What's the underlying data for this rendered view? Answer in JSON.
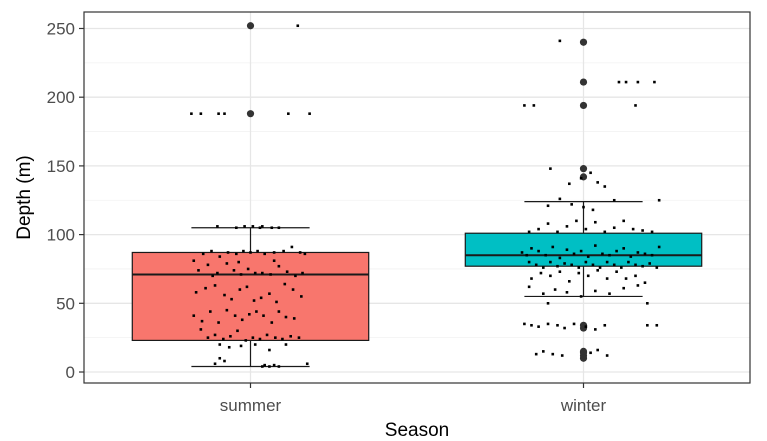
{
  "chart_data": {
    "type": "boxplot",
    "xlabel": "Season",
    "ylabel": "Depth (m)",
    "categories": [
      "summer",
      "winter"
    ],
    "ylim": [
      -8,
      262
    ],
    "yticks": [
      0,
      50,
      100,
      150,
      200,
      250
    ],
    "grid": true,
    "colors": {
      "summer": "#F8766D",
      "winter": "#00BFC4"
    },
    "boxes": [
      {
        "category": "summer",
        "whisker_low": 4,
        "q1": 23,
        "median": 71,
        "q3": 87,
        "whisker_high": 105,
        "outliers": [
          188,
          252
        ]
      },
      {
        "category": "winter",
        "whisker_low": 55,
        "q1": 77,
        "median": 85,
        "q3": 101,
        "whisker_high": 124,
        "outliers": [
          10,
          12,
          14,
          15,
          32,
          34,
          142,
          148,
          194,
          211,
          240
        ]
      }
    ],
    "jitter_points": {
      "summer": [
        [
          -0.5,
          188
        ],
        [
          -0.42,
          188
        ],
        [
          -0.27,
          188
        ],
        [
          -0.22,
          188
        ],
        [
          0.4,
          252
        ],
        [
          0.32,
          188
        ],
        [
          0.5,
          188
        ],
        [
          -0.28,
          106
        ],
        [
          -0.12,
          105
        ],
        [
          -0.05,
          106
        ],
        [
          0.02,
          106
        ],
        [
          0.08,
          105
        ],
        [
          0.18,
          105
        ],
        [
          0.24,
          105
        ],
        [
          0.1,
          106
        ],
        [
          -0.48,
          81
        ],
        [
          -0.4,
          86
        ],
        [
          -0.33,
          88
        ],
        [
          -0.26,
          84
        ],
        [
          -0.19,
          87
        ],
        [
          -0.12,
          86
        ],
        [
          -0.06,
          88
        ],
        [
          0.0,
          87
        ],
        [
          0.06,
          88
        ],
        [
          0.12,
          86
        ],
        [
          0.2,
          87
        ],
        [
          0.28,
          88
        ],
        [
          0.35,
          91
        ],
        [
          0.42,
          87
        ],
        [
          0.46,
          86
        ],
        [
          -0.44,
          74
        ],
        [
          -0.36,
          78
        ],
        [
          -0.28,
          72
        ],
        [
          -0.2,
          79
        ],
        [
          -0.14,
          74
        ],
        [
          -0.08,
          71
        ],
        [
          -0.02,
          75
        ],
        [
          0.04,
          72
        ],
        [
          0.1,
          72
        ],
        [
          0.17,
          71
        ],
        [
          0.24,
          77
        ],
        [
          0.31,
          73
        ],
        [
          0.38,
          70
        ],
        [
          0.44,
          72
        ],
        [
          -0.32,
          70
        ],
        [
          -0.1,
          80
        ],
        [
          0.2,
          81
        ],
        [
          -0.46,
          58
        ],
        [
          -0.38,
          61
        ],
        [
          -0.3,
          63
        ],
        [
          -0.22,
          56
        ],
        [
          -0.16,
          53
        ],
        [
          -0.09,
          60
        ],
        [
          -0.03,
          62
        ],
        [
          0.03,
          52
        ],
        [
          0.09,
          54
        ],
        [
          0.16,
          57
        ],
        [
          0.22,
          51
        ],
        [
          0.29,
          64
        ],
        [
          0.36,
          60
        ],
        [
          0.43,
          55
        ],
        [
          -0.48,
          41
        ],
        [
          -0.41,
          37
        ],
        [
          -0.34,
          44
        ],
        [
          -0.27,
          36
        ],
        [
          -0.2,
          45
        ],
        [
          -0.13,
          41
        ],
        [
          -0.07,
          38
        ],
        [
          -0.01,
          42
        ],
        [
          0.05,
          44
        ],
        [
          0.11,
          41
        ],
        [
          0.18,
          36
        ],
        [
          0.24,
          44
        ],
        [
          0.3,
          40
        ],
        [
          0.37,
          39
        ],
        [
          -0.42,
          31
        ],
        [
          -0.36,
          25
        ],
        [
          -0.3,
          27
        ],
        [
          -0.23,
          24
        ],
        [
          -0.17,
          26
        ],
        [
          -0.11,
          30
        ],
        [
          -0.04,
          23
        ],
        [
          0.02,
          25
        ],
        [
          0.08,
          24
        ],
        [
          0.14,
          27
        ],
        [
          0.21,
          25
        ],
        [
          0.27,
          24
        ],
        [
          0.34,
          26
        ],
        [
          0.41,
          25
        ],
        [
          -0.26,
          20
        ],
        [
          -0.18,
          18
        ],
        [
          -0.08,
          19
        ],
        [
          0.04,
          20
        ],
        [
          0.16,
          16
        ],
        [
          0.3,
          20
        ],
        [
          -0.3,
          6
        ],
        [
          -0.26,
          10
        ],
        [
          -0.22,
          8
        ],
        [
          0.1,
          4
        ],
        [
          0.12,
          5
        ],
        [
          0.16,
          4
        ],
        [
          0.2,
          5
        ],
        [
          0.24,
          4
        ],
        [
          0.48,
          6
        ]
      ],
      "winter": [
        [
          -0.2,
          241
        ],
        [
          0.3,
          211
        ],
        [
          0.36,
          211
        ],
        [
          0.46,
          211
        ],
        [
          0.6,
          211
        ],
        [
          0.44,
          194
        ],
        [
          -0.5,
          194
        ],
        [
          -0.42,
          194
        ],
        [
          -0.28,
          148
        ],
        [
          -0.12,
          137
        ],
        [
          -0.02,
          141
        ],
        [
          0.06,
          145
        ],
        [
          0.12,
          138
        ],
        [
          0.18,
          135
        ],
        [
          -0.2,
          126
        ],
        [
          -0.1,
          122
        ],
        [
          0.0,
          120
        ],
        [
          0.08,
          118
        ],
        [
          0.26,
          125
        ],
        [
          -0.3,
          121
        ],
        [
          0.64,
          125
        ],
        [
          -0.46,
          102
        ],
        [
          -0.38,
          104
        ],
        [
          -0.3,
          108
        ],
        [
          -0.22,
          102
        ],
        [
          -0.14,
          106
        ],
        [
          -0.06,
          110
        ],
        [
          0.02,
          104
        ],
        [
          0.1,
          109
        ],
        [
          0.18,
          102
        ],
        [
          0.26,
          105
        ],
        [
          0.34,
          110
        ],
        [
          0.42,
          104
        ],
        [
          0.5,
          103
        ],
        [
          0.58,
          102
        ],
        [
          -0.52,
          87
        ],
        [
          -0.48,
          85
        ],
        [
          -0.44,
          90
        ],
        [
          -0.38,
          88
        ],
        [
          -0.32,
          85
        ],
        [
          -0.26,
          91
        ],
        [
          -0.2,
          83
        ],
        [
          -0.14,
          89
        ],
        [
          -0.08,
          86
        ],
        [
          -0.02,
          88
        ],
        [
          0.04,
          84
        ],
        [
          0.1,
          92
        ],
        [
          0.16,
          86
        ],
        [
          0.22,
          85
        ],
        [
          0.28,
          88
        ],
        [
          0.34,
          90
        ],
        [
          0.4,
          84
        ],
        [
          0.46,
          87
        ],
        [
          0.52,
          86
        ],
        [
          0.58,
          85
        ],
        [
          0.64,
          91
        ],
        [
          -0.46,
          80
        ],
        [
          -0.4,
          78
        ],
        [
          -0.34,
          76
        ],
        [
          -0.28,
          80
        ],
        [
          -0.22,
          77
        ],
        [
          -0.16,
          79
        ],
        [
          -0.1,
          78
        ],
        [
          -0.04,
          76
        ],
        [
          0.02,
          80
        ],
        [
          0.08,
          78
        ],
        [
          0.14,
          76
        ],
        [
          0.2,
          80
        ],
        [
          0.26,
          78
        ],
        [
          0.32,
          76
        ],
        [
          0.38,
          80
        ],
        [
          0.44,
          78
        ],
        [
          0.5,
          77
        ],
        [
          0.56,
          79
        ],
        [
          0.62,
          76
        ],
        [
          -0.44,
          68
        ],
        [
          -0.36,
          72
        ],
        [
          -0.28,
          70
        ],
        [
          -0.2,
          73
        ],
        [
          -0.12,
          66
        ],
        [
          -0.04,
          72
        ],
        [
          0.04,
          70
        ],
        [
          0.12,
          74
        ],
        [
          0.2,
          68
        ],
        [
          0.28,
          73
        ],
        [
          0.36,
          68
        ],
        [
          0.44,
          70
        ],
        [
          0.52,
          65
        ],
        [
          -0.46,
          62
        ],
        [
          -0.34,
          57
        ],
        [
          -0.24,
          60
        ],
        [
          -0.14,
          58
        ],
        [
          -0.02,
          55
        ],
        [
          0.1,
          59
        ],
        [
          0.22,
          57
        ],
        [
          0.34,
          61
        ],
        [
          0.46,
          63
        ],
        [
          0.54,
          50
        ],
        [
          -0.3,
          50
        ],
        [
          -0.5,
          35
        ],
        [
          -0.44,
          34
        ],
        [
          -0.38,
          33
        ],
        [
          -0.3,
          35
        ],
        [
          -0.22,
          34
        ],
        [
          -0.16,
          32
        ],
        [
          -0.08,
          35
        ],
        [
          0.02,
          33
        ],
        [
          0.1,
          31
        ],
        [
          0.18,
          34
        ],
        [
          0.54,
          34
        ],
        [
          0.62,
          34
        ],
        [
          -0.4,
          13
        ],
        [
          -0.34,
          15
        ],
        [
          -0.26,
          13
        ],
        [
          -0.18,
          12
        ],
        [
          0.06,
          14
        ],
        [
          0.12,
          16
        ],
        [
          0.2,
          12
        ]
      ]
    }
  }
}
